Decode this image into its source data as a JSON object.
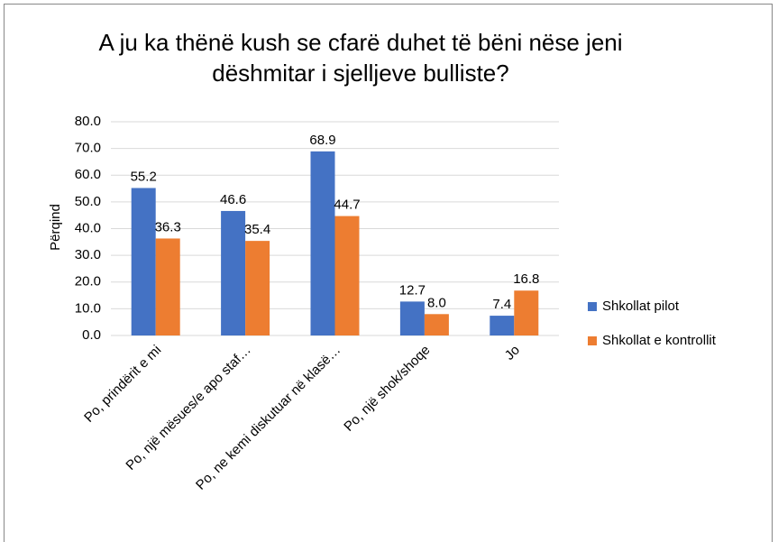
{
  "chart_data": {
    "type": "bar",
    "title": "A ju ka thënë kush se cfarë duhet të bëni nëse jeni dëshmitar i sjelljeve bulliste?",
    "y_label": "Përqind",
    "categories": [
      "Po, prindërit e mi",
      "Po, një mësues/e apo staf…",
      "Po, ne kemi diskutuar në klasë…",
      "Po, një shok/shoqe",
      "Jo"
    ],
    "series": [
      {
        "name": "Shkollat pilot",
        "color": "#4472c4",
        "values": [
          55.2,
          46.6,
          68.9,
          12.7,
          7.4
        ]
      },
      {
        "name": "Shkollat e kontrollit",
        "color": "#ed7d31",
        "values": [
          36.3,
          35.4,
          44.7,
          8.0,
          16.8
        ],
        "value_labels": [
          "36.3",
          "35.4",
          "44.7",
          "8.0",
          "16.8"
        ]
      }
    ],
    "ylim": [
      0,
      80
    ],
    "yticks": [
      {
        "value": 0,
        "label": "0.0"
      },
      {
        "value": 10,
        "label": "10.0"
      },
      {
        "value": 20,
        "label": "20.0"
      },
      {
        "value": 30,
        "label": "30.0"
      },
      {
        "value": 40,
        "label": "40.0"
      },
      {
        "value": 50,
        "label": "50.0"
      },
      {
        "value": 60,
        "label": "60.0"
      },
      {
        "value": 70,
        "label": "70.0"
      },
      {
        "value": 80,
        "label": "80.0"
      }
    ],
    "grid": true,
    "legend": "right"
  }
}
